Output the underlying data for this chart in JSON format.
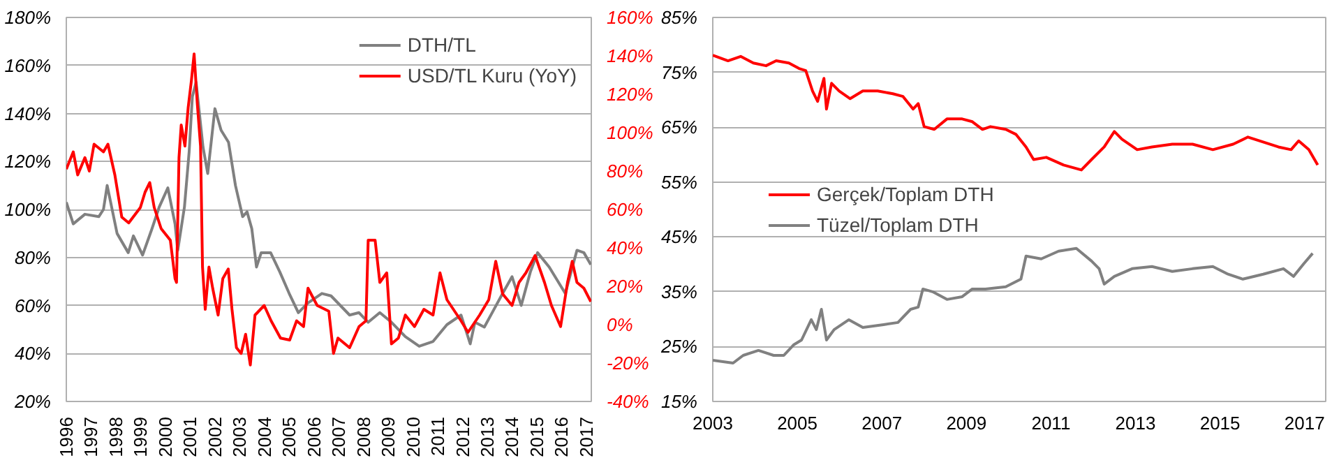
{
  "chart_data": [
    {
      "type": "line",
      "xlim": [
        1996,
        2017.2
      ],
      "xticks": [
        1996,
        1997,
        1998,
        1999,
        2000,
        2001,
        2002,
        2003,
        2004,
        2005,
        2006,
        2007,
        2008,
        2009,
        2010,
        2011,
        2012,
        2013,
        2014,
        2015,
        2016,
        2017
      ],
      "ylim": [
        20,
        180
      ],
      "yticks": [
        {
          "value": 20,
          "label": "20%"
        },
        {
          "value": 40,
          "label": "40%"
        },
        {
          "value": 60,
          "label": "60%"
        },
        {
          "value": 80,
          "label": "80%"
        },
        {
          "value": 100,
          "label": "100%"
        },
        {
          "value": 120,
          "label": "120%"
        },
        {
          "value": 140,
          "label": "140%"
        },
        {
          "value": 160,
          "label": "160%"
        },
        {
          "value": 180,
          "label": "180%"
        }
      ],
      "y2lim": [
        -40,
        160
      ],
      "y2ticks": [
        {
          "value": -40,
          "label": "-40%"
        },
        {
          "value": -20,
          "label": "-20%"
        },
        {
          "value": 0,
          "label": "0%"
        },
        {
          "value": 20,
          "label": "20%"
        },
        {
          "value": 40,
          "label": "40%"
        },
        {
          "value": 60,
          "label": "60%"
        },
        {
          "value": 80,
          "label": "80%"
        },
        {
          "value": 100,
          "label": "100%"
        },
        {
          "value": 120,
          "label": "120%"
        },
        {
          "value": 140,
          "label": "140%"
        },
        {
          "value": 160,
          "label": "160%"
        }
      ],
      "grid": "y",
      "legend": "top right",
      "series": [
        {
          "name": "DTH/TL",
          "color": "#808080",
          "x": [
            1996.0,
            1996.28,
            1996.75,
            1997.31,
            1997.5,
            1997.65,
            1998.05,
            1998.5,
            1998.71,
            1999.08,
            1999.46,
            1999.75,
            2000.1,
            2000.39,
            2000.5,
            2000.77,
            2000.96,
            2001.09,
            2001.24,
            2001.52,
            2001.71,
            2002.0,
            2002.25,
            2002.55,
            2002.83,
            2003.12,
            2003.3,
            2003.49,
            2003.68,
            2003.87,
            2004.25,
            2004.62,
            2005.0,
            2005.37,
            2005.75,
            2006.32,
            2006.69,
            2007.44,
            2007.82,
            2008.19,
            2008.66,
            2009.13,
            2009.69,
            2010.25,
            2010.81,
            2011.37,
            2011.94,
            2012.31,
            2012.5,
            2012.88,
            2013.25,
            2013.62,
            2014.0,
            2014.37,
            2014.74,
            2015.03,
            2015.5,
            2016.15,
            2016.62,
            2016.9,
            2017.18
          ],
          "values": [
            103,
            94,
            98,
            97,
            100,
            110,
            90,
            82,
            89,
            81,
            92,
            101,
            109,
            94,
            83,
            101,
            124,
            147,
            153,
            126,
            115,
            142,
            133,
            128,
            110,
            97,
            99,
            92,
            76,
            82,
            82,
            74,
            65,
            57,
            61,
            65,
            64,
            56,
            57,
            53,
            57,
            53,
            47,
            43,
            45,
            52,
            56,
            44,
            53,
            51,
            58,
            65,
            72,
            60,
            74,
            82,
            76,
            65,
            83,
            82,
            77
          ]
        },
        {
          "name": "USD/TL Kuru (YoY)",
          "color": "#ff0000",
          "axis": "y2",
          "x": [
            1996.0,
            1996.28,
            1996.46,
            1996.75,
            1996.93,
            1997.12,
            1997.5,
            1997.68,
            1997.96,
            1998.24,
            1998.52,
            1998.99,
            1999.18,
            1999.37,
            1999.55,
            1999.83,
            2000.2,
            2000.39,
            2000.45,
            2000.55,
            2000.64,
            2000.79,
            2000.92,
            2001.05,
            2001.16,
            2001.29,
            2001.42,
            2001.5,
            2001.61,
            2001.76,
            2001.91,
            2002.13,
            2002.32,
            2002.54,
            2002.69,
            2002.87,
            2003.06,
            2003.24,
            2003.43,
            2003.62,
            2003.99,
            2004.27,
            2004.65,
            2005.02,
            2005.3,
            2005.58,
            2005.76,
            2006.13,
            2006.6,
            2006.79,
            2006.97,
            2007.44,
            2007.82,
            2008.1,
            2008.19,
            2008.47,
            2008.66,
            2008.94,
            2009.13,
            2009.41,
            2009.69,
            2010.06,
            2010.44,
            2010.81,
            2011.09,
            2011.37,
            2011.94,
            2012.22,
            2012.69,
            2013.06,
            2013.34,
            2013.62,
            2014.0,
            2014.28,
            2014.56,
            2014.93,
            2015.31,
            2015.59,
            2015.96,
            2016.24,
            2016.43,
            2016.62,
            2016.9,
            2017.18
          ],
          "values": [
            81,
            90,
            78,
            87,
            80,
            94,
            90,
            94,
            78,
            56,
            53,
            61,
            69,
            74,
            61,
            50,
            44,
            24,
            22,
            87,
            104,
            93,
            113,
            127,
            141,
            115,
            93,
            30,
            8,
            30,
            19,
            5,
            24,
            29,
            8,
            -12,
            -15,
            -5,
            -21,
            5,
            10,
            2,
            -7,
            -8,
            2,
            -1,
            19,
            10,
            7,
            -15,
            -7,
            -12,
            -1,
            2,
            44,
            44,
            22,
            27,
            -10,
            -7,
            5,
            -1,
            8,
            5,
            27,
            13,
            2,
            -4,
            5,
            13,
            33,
            16,
            10,
            22,
            27,
            36,
            22,
            10,
            -1,
            22,
            33,
            22,
            19,
            12
          ]
        }
      ]
    },
    {
      "type": "line",
      "xlim": [
        2003,
        2017.5
      ],
      "xticks": [
        2003,
        2005,
        2007,
        2009,
        2011,
        2013,
        2015,
        2017
      ],
      "ylim": [
        15,
        85
      ],
      "yticks": [
        {
          "value": 15,
          "label": "15%"
        },
        {
          "value": 25,
          "label": "25%"
        },
        {
          "value": 35,
          "label": "35%"
        },
        {
          "value": 45,
          "label": "45%"
        },
        {
          "value": 55,
          "label": "55%"
        },
        {
          "value": 65,
          "label": "65%"
        },
        {
          "value": 75,
          "label": "75%"
        },
        {
          "value": 85,
          "label": "85%"
        }
      ],
      "grid": "y",
      "legend": "left",
      "series": [
        {
          "name": "Gerçek/Toplam DTH",
          "color": "#ff0000",
          "x": [
            2003.0,
            2003.36,
            2003.66,
            2003.96,
            2004.26,
            2004.5,
            2004.8,
            2005.04,
            2005.2,
            2005.36,
            2005.48,
            2005.63,
            2005.69,
            2005.81,
            2005.99,
            2006.25,
            2006.55,
            2006.9,
            2007.26,
            2007.5,
            2007.74,
            2007.86,
            2008.0,
            2008.24,
            2008.54,
            2008.9,
            2009.14,
            2009.38,
            2009.57,
            2009.93,
            2010.17,
            2010.41,
            2010.59,
            2010.89,
            2011.3,
            2011.72,
            2011.96,
            2012.26,
            2012.5,
            2012.68,
            2013.04,
            2013.39,
            2013.87,
            2014.35,
            2014.83,
            2015.31,
            2015.66,
            2016.02,
            2016.38,
            2016.68,
            2016.86,
            2017.1,
            2017.31
          ],
          "values": [
            78.1,
            77.1,
            77.9,
            76.7,
            76.2,
            77.1,
            76.7,
            75.7,
            75.3,
            71.6,
            69.7,
            73.9,
            68.3,
            73,
            71.6,
            70.2,
            71.6,
            71.6,
            71.1,
            70.6,
            68.3,
            69.3,
            65.1,
            64.6,
            66.5,
            66.5,
            66,
            64.6,
            65.1,
            64.6,
            63.7,
            61.4,
            59.1,
            59.5,
            58.1,
            57.2,
            59.1,
            61.4,
            64.2,
            62.8,
            60.9,
            61.4,
            61.9,
            61.9,
            60.9,
            61.9,
            63.2,
            62.3,
            61.4,
            60.9,
            62.5,
            60.9,
            58.1
          ]
        },
        {
          "name": "Tüzel/Toplam DTH",
          "color": "#808080",
          "x": [
            2003.0,
            2003.48,
            2003.72,
            2004.08,
            2004.44,
            2004.68,
            2004.91,
            2005.1,
            2005.33,
            2005.45,
            2005.57,
            2005.69,
            2005.87,
            2006.22,
            2006.55,
            2007.04,
            2007.38,
            2007.68,
            2007.86,
            2007.97,
            2008.2,
            2008.54,
            2008.9,
            2009.14,
            2009.45,
            2009.93,
            2010.29,
            2010.41,
            2010.77,
            2011.18,
            2011.6,
            2011.96,
            2012.14,
            2012.26,
            2012.5,
            2012.92,
            2013.39,
            2013.87,
            2014.35,
            2014.83,
            2015.19,
            2015.54,
            2016.02,
            2016.5,
            2016.74,
            2016.98,
            2017.19
          ],
          "values": [
            22.5,
            22,
            23.4,
            24.3,
            23.4,
            23.4,
            25.3,
            26.2,
            29.9,
            28.1,
            31.8,
            26.2,
            28.1,
            29.9,
            28.5,
            29,
            29.4,
            31.8,
            32.2,
            35.5,
            35,
            33.6,
            34.1,
            35.5,
            35.5,
            35.9,
            37.3,
            41.5,
            41,
            42.4,
            42.9,
            40.6,
            39.2,
            36.4,
            37.8,
            39.2,
            39.6,
            38.7,
            39.2,
            39.6,
            38.2,
            37.3,
            38.2,
            39.2,
            37.8,
            40.1,
            42
          ]
        }
      ]
    }
  ]
}
